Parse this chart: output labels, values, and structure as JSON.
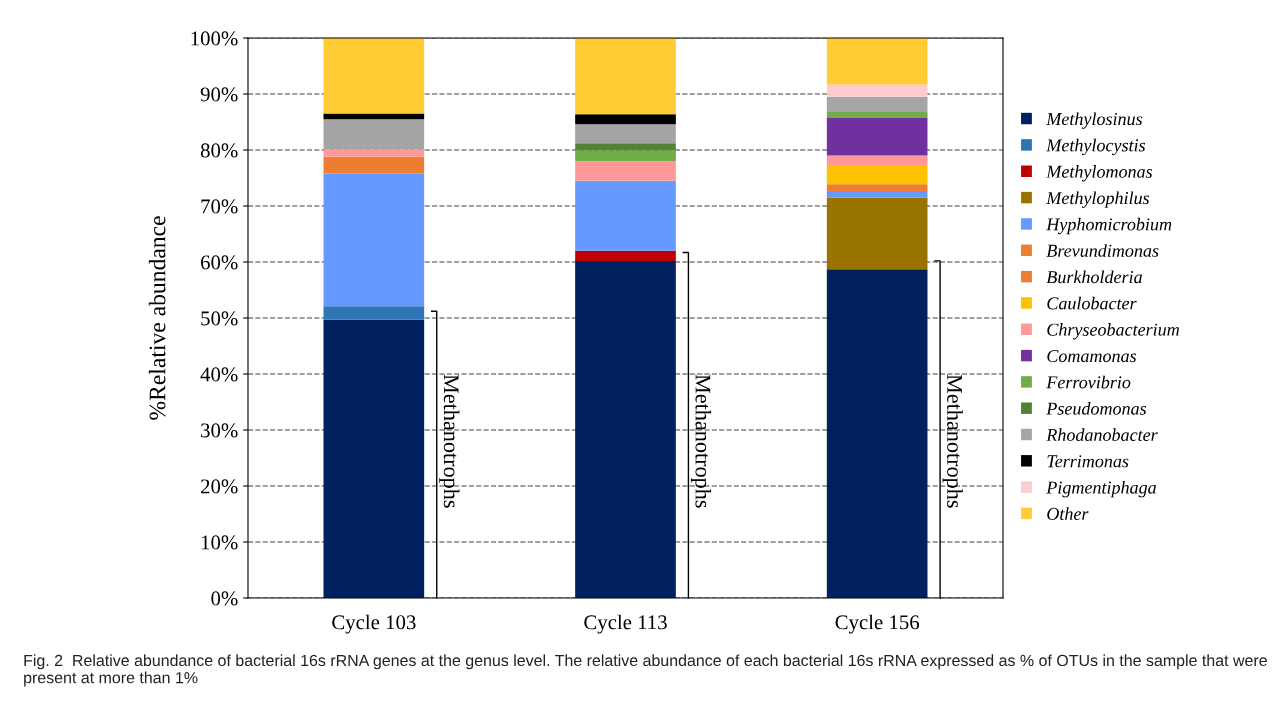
{
  "chart_data": {
    "type": "bar",
    "stacked": true,
    "ylabel": "%Relative abundance",
    "categories": [
      "Cycle 103",
      "Cycle 113",
      "Cycle 156"
    ],
    "series": [
      {
        "name": "Methylosinus",
        "color": "#002060",
        "values": [
          49.7,
          60.2,
          58.7
        ]
      },
      {
        "name": "Methylocystis",
        "color": "#2e75b6",
        "values": [
          2.4,
          null,
          null
        ]
      },
      {
        "name": "Methylomonas",
        "color": "#c00000",
        "values": [
          null,
          1.8,
          null
        ]
      },
      {
        "name": "Methylophilus",
        "color": "#997300",
        "values": [
          null,
          null,
          12.8
        ]
      },
      {
        "name": "Hyphomicrobium",
        "color": "#6699ff",
        "values": [
          23.7,
          12.5,
          1.2
        ]
      },
      {
        "name": "Brevundimonas",
        "color": "#ed7d31",
        "values": [
          3.0,
          null,
          null
        ]
      },
      {
        "name": "Burkholderia",
        "color": "#ed7d31",
        "values": [
          null,
          null,
          1.2
        ]
      },
      {
        "name": "Caulobacter",
        "color": "#ffc000",
        "values": [
          null,
          null,
          3.4
        ]
      },
      {
        "name": "Chryseobacterium",
        "color": "#ff9999",
        "values": [
          1.3,
          3.5,
          1.7
        ]
      },
      {
        "name": "Comamonas",
        "color": "#7030a0",
        "values": [
          null,
          null,
          6.7
        ]
      },
      {
        "name": "Ferrovibrio",
        "color": "#70ad47",
        "values": [
          null,
          1.9,
          1.2
        ]
      },
      {
        "name": "Pseudomonas",
        "color": "#548235",
        "values": [
          null,
          1.3,
          null
        ]
      },
      {
        "name": "Rhodanobacter",
        "color": "#a5a5a5",
        "values": [
          5.4,
          3.4,
          2.6
        ]
      },
      {
        "name": "Terrimonas",
        "color": "#000000",
        "values": [
          1.0,
          1.8,
          null
        ]
      },
      {
        "name": "Pigmentiphaga",
        "color": "#ffcccc",
        "values": [
          null,
          null,
          2.2
        ]
      },
      {
        "name": "Other",
        "color": "#ffcc33",
        "values": [
          13.5,
          13.6,
          8.3
        ]
      }
    ],
    "ylim": [
      0,
      100
    ],
    "yticks": [
      {
        "value": 0,
        "label": "0%"
      },
      {
        "value": 10,
        "label": "10%"
      },
      {
        "value": 20,
        "label": "20%"
      },
      {
        "value": 30,
        "label": "30%"
      },
      {
        "value": 40,
        "label": "40%"
      },
      {
        "value": 50,
        "label": "50%"
      },
      {
        "value": 60,
        "label": "60%"
      },
      {
        "value": 70,
        "label": "70%"
      },
      {
        "value": 80,
        "label": "80%"
      },
      {
        "value": 90,
        "label": "90%"
      },
      {
        "value": 100,
        "label": "100%"
      }
    ],
    "grid": "y",
    "legend": "right",
    "annotations": [
      "Methanotrophs",
      "Methanotrophs",
      "Methanotrophs",
      "Fig. 2  Relative abundance of bacterial 16s rRNA genes at the genus level. The relative abundance of each bacterial 16s rRNA expressed as % of OTUs in the sample that were present at more than 1%"
    ]
  }
}
